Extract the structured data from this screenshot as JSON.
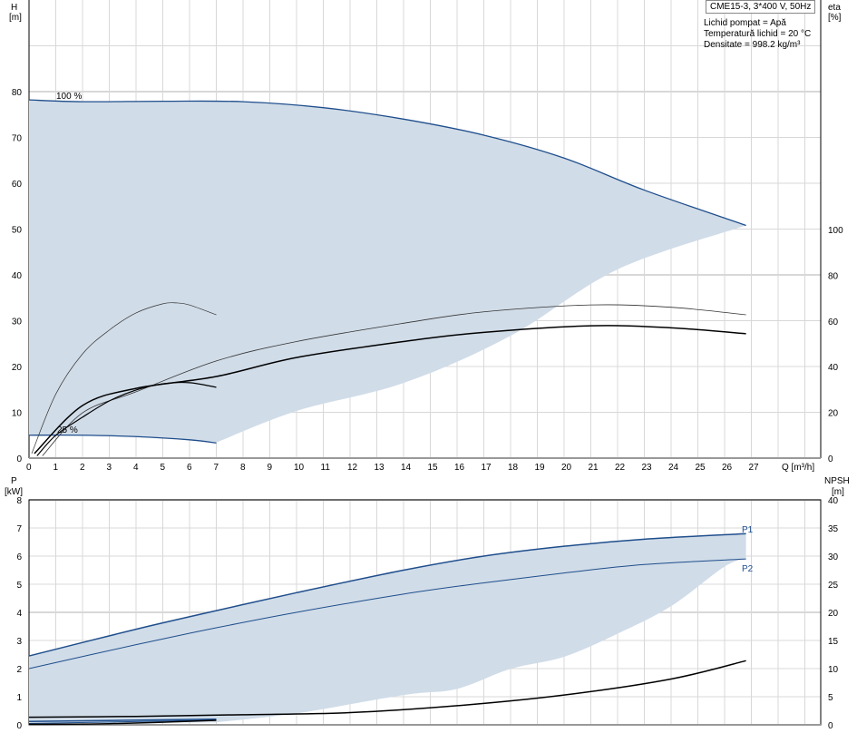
{
  "header": {
    "model": "CME15-3, 3*400 V, 50Hz",
    "fluid": "Lichid pompat = Apă",
    "temperature": "Temperatură lichid = 20 °C",
    "density": "Densitate = 998.2 kg/m³"
  },
  "chart_data": [
    {
      "type": "line",
      "title": "",
      "xlabel": "Q [m³/h]",
      "ylabel": "H [m]",
      "y2label": "eta [%]",
      "xlim": [
        0,
        29
      ],
      "ylim": [
        0,
        90
      ],
      "y2lim": [
        0,
        100
      ],
      "grid": true,
      "x_ticks": [
        0,
        1,
        2,
        3,
        4,
        5,
        6,
        7,
        8,
        9,
        10,
        11,
        12,
        13,
        14,
        15,
        16,
        17,
        18,
        19,
        20,
        21,
        22,
        23,
        24,
        25,
        26,
        27
      ],
      "y_ticks": [
        0,
        10,
        20,
        30,
        40,
        50,
        60,
        70,
        80
      ],
      "y2_ticks": [
        0,
        20,
        40,
        60,
        80,
        100
      ],
      "fill_color": "#d0dce8",
      "curve_color": "#1f4e8c",
      "series": [
        {
          "name": "100 %",
          "axis": "H",
          "x": [
            0,
            2,
            5,
            8,
            11,
            14,
            17,
            20,
            23,
            26.8
          ],
          "y": [
            78.2,
            77.8,
            77.9,
            77.8,
            76.5,
            74,
            70.5,
            65.5,
            58.5,
            50.8
          ]
        },
        {
          "name": "25 %",
          "axis": "H",
          "x": [
            0,
            2,
            4,
            6,
            7
          ],
          "y": [
            5,
            5,
            4.7,
            4,
            3.3
          ]
        },
        {
          "axis": "H",
          "role": "min-boundary",
          "x": [
            7,
            10,
            14,
            18,
            22,
            26.8
          ],
          "y": [
            3.4,
            10.3,
            16.4,
            26.7,
            41.2,
            50.8
          ]
        },
        {
          "axis": "eta",
          "role": "eta1-100",
          "x": [
            0.5,
            2,
            4,
            7,
            10,
            14,
            17,
            21,
            24,
            26.8
          ],
          "y": [
            1,
            19.8,
            29,
            42.5,
            51,
            59,
            64,
            67,
            66,
            62.7
          ]
        },
        {
          "axis": "eta",
          "role": "eta2-100",
          "x": [
            0.2,
            2,
            4,
            7,
            10,
            14,
            17,
            21,
            24,
            26.8
          ],
          "y": [
            2,
            23,
            30.5,
            35.7,
            44,
            51,
            55,
            57.9,
            57,
            54.4
          ]
        },
        {
          "axis": "eta",
          "role": "eta1-25",
          "x": [
            0.1,
            1,
            2,
            3,
            4,
            5,
            5.5,
            6,
            7
          ],
          "y": [
            2,
            28,
            45.6,
            56,
            63.5,
            67.5,
            67.9,
            67,
            62.7
          ]
        },
        {
          "axis": "eta",
          "role": "eta2-25",
          "x": [
            0.3,
            1,
            2,
            3,
            4,
            5,
            6,
            7
          ],
          "y": [
            1,
            10,
            17.9,
            25,
            29.8,
            32.5,
            33,
            31
          ]
        }
      ]
    },
    {
      "type": "line",
      "title": "",
      "xlabel": "Q [m³/h]",
      "ylabel": "P [kW]",
      "y2label": "NPSH [m]",
      "xlim": [
        0,
        29
      ],
      "ylim": [
        0,
        8
      ],
      "y2lim": [
        0,
        40
      ],
      "grid": true,
      "y_ticks": [
        0,
        1,
        2,
        3,
        4,
        5,
        6,
        7,
        8
      ],
      "y2_ticks": [
        0,
        5,
        10,
        15,
        20,
        25,
        30,
        35,
        40
      ],
      "series": [
        {
          "name": "P1",
          "axis": "P",
          "x": [
            0,
            4,
            7,
            10,
            14,
            17,
            20,
            23,
            26.8
          ],
          "y": [
            2.45,
            3.4,
            4.06,
            4.7,
            5.5,
            6,
            6.35,
            6.6,
            6.8
          ]
        },
        {
          "name": "P2",
          "axis": "P",
          "x": [
            0,
            4,
            7,
            10,
            14,
            17,
            20,
            23,
            26.8
          ],
          "y": [
            2,
            2.85,
            3.45,
            4,
            4.65,
            5.05,
            5.4,
            5.7,
            5.9
          ]
        },
        {
          "axis": "P",
          "role": "min-boundary",
          "x": [
            7,
            10,
            14,
            16,
            18,
            20,
            22,
            24,
            26,
            26.8
          ],
          "y": [
            0.09,
            0.41,
            1.06,
            1.28,
            1.99,
            2.42,
            3.24,
            4.22,
            5.63,
            5.9
          ]
        },
        {
          "axis": "NPSH",
          "role": "npsh-100",
          "x": [
            0,
            4,
            8,
            12,
            16,
            20,
            24,
            26.8
          ],
          "y": [
            1.36,
            1.5,
            1.8,
            2.17,
            3.4,
            5.3,
            8.15,
            11.4
          ]
        },
        {
          "axis": "P",
          "role": "p1-25",
          "x": [
            0,
            7
          ],
          "y": [
            0.12,
            0.2
          ]
        },
        {
          "axis": "P",
          "role": "p2-25",
          "x": [
            0,
            7
          ],
          "y": [
            0.05,
            0.17
          ]
        },
        {
          "axis": "NPSH",
          "role": "npsh-25",
          "x": [
            0,
            3,
            7
          ],
          "y": [
            0.1,
            0.2,
            0.8
          ]
        }
      ]
    }
  ],
  "axes": {
    "h": "H",
    "h_unit": "[m]",
    "eta": "eta",
    "eta_unit": "[%]",
    "p": "P",
    "p_unit": "[kW]",
    "npsh": "NPSH",
    "npsh_unit": "[m]",
    "q": "Q [m³/h]"
  }
}
